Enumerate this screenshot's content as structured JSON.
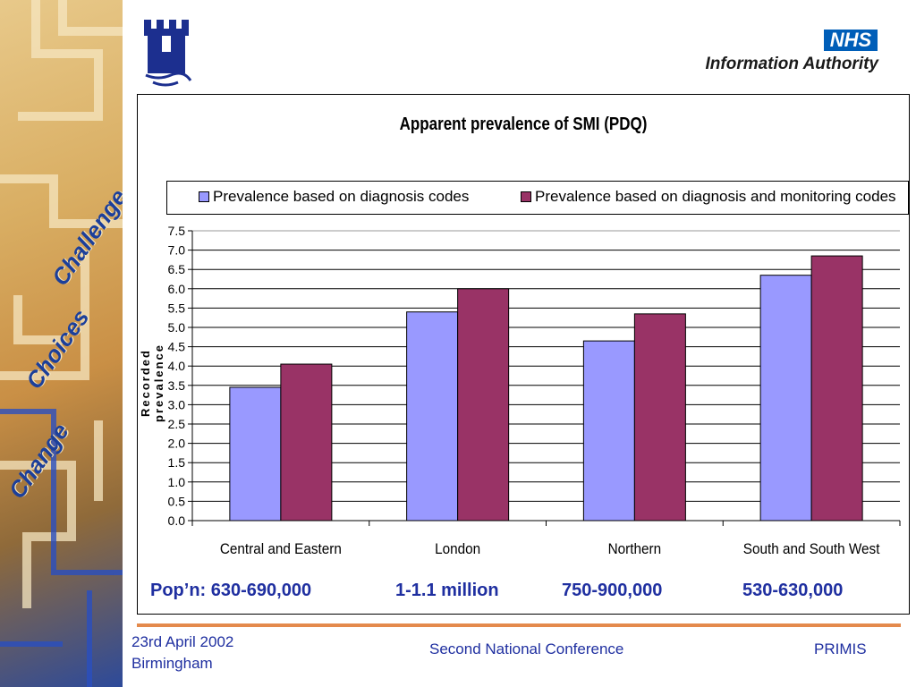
{
  "side_panel": {
    "words": [
      "Challenge",
      "Choices",
      "Change"
    ]
  },
  "branding": {
    "nhs_logo": "NHS",
    "nhs_subtitle": "Information Authority",
    "left_logo": "tower-logo-icon"
  },
  "chart_data": {
    "type": "bar",
    "title": "Apparent prevalence of SMI (PDQ)",
    "xlabel": "",
    "ylabel": "Recorded prevalence",
    "ylim": [
      0,
      7.5
    ],
    "yticks": [
      "0.0",
      "0.5",
      "1.0",
      "1.5",
      "2.0",
      "2.5",
      "3.0",
      "3.5",
      "4.0",
      "4.5",
      "5.0",
      "5.5",
      "6.0",
      "6.5",
      "7.0",
      "7.5"
    ],
    "grid": true,
    "legend_position": "top",
    "categories": [
      "Central and Eastern",
      "London",
      "Northern",
      "South and South West"
    ],
    "series": [
      {
        "name": "Prevalence based on diagnosis codes",
        "color": "#9999ff",
        "values": [
          3.45,
          5.4,
          4.65,
          6.35
        ]
      },
      {
        "name": "Prevalence based on diagnosis and monitoring codes",
        "color": "#993366",
        "values": [
          4.05,
          6.0,
          5.35,
          6.85
        ]
      }
    ]
  },
  "population": [
    "Pop’n: 630-690,000",
    "1-1.1 million",
    "750-900,000",
    "530-630,000"
  ],
  "footer": {
    "date": "23rd April 2002",
    "location": "Birmingham",
    "conference": "Second National Conference",
    "org": "PRIMIS"
  },
  "colors": {
    "text_blue": "#1f2fa0",
    "rule_orange": "#e48a4c",
    "nhs_blue": "#005eb8"
  }
}
